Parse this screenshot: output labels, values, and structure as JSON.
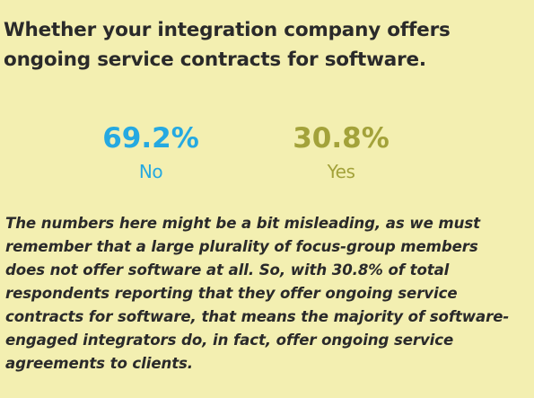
{
  "header": {
    "title_lines": [
      "Whether your integration company offers",
      "ongoing service contracts for software."
    ]
  },
  "stats": [
    {
      "value": "69.2%",
      "label": "No",
      "color": "#25a9e1"
    },
    {
      "value": "30.8%",
      "label": "Yes",
      "color": "#a3a23a"
    }
  ],
  "paragraph": {
    "lines": [
      "The numbers here might be a bit misleading, as we must",
      "remember that a large plurality of focus-group members",
      "does not offer software at all. So, with 30.8% of total",
      "respondents reporting that they offer ongoing service",
      "contracts for software, that means the majority of software-",
      "engaged integrators do, in fact, offer ongoing service",
      "agreements to clients."
    ]
  }
}
